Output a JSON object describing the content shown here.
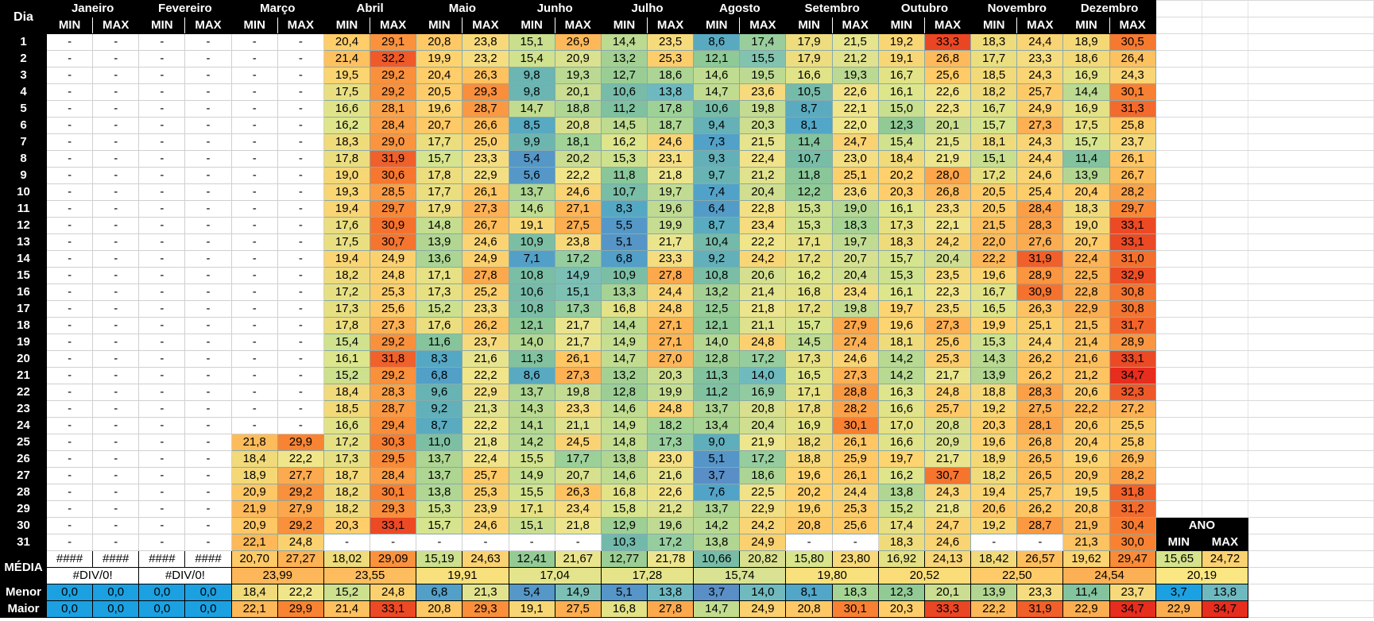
{
  "header": {
    "dia": "Dia",
    "min": "MIN",
    "max": "MAX",
    "ano": "ANO"
  },
  "months": [
    "Janeiro",
    "Fevereiro",
    "Março",
    "Abril",
    "Maio",
    "Junho",
    "Julho",
    "Agosto",
    "Setembro",
    "Outubro",
    "Novembro",
    "Dezembro"
  ],
  "days": [
    "1",
    "2",
    "3",
    "4",
    "5",
    "6",
    "7",
    "8",
    "9",
    "10",
    "11",
    "12",
    "13",
    "14",
    "15",
    "16",
    "17",
    "18",
    "19",
    "20",
    "21",
    "22",
    "23",
    "24",
    "25",
    "26",
    "27",
    "28",
    "29",
    "30",
    "31"
  ],
  "rows": [
    [
      "-",
      "-",
      "-",
      "-",
      "-",
      "-",
      "20,4",
      "29,1",
      "20,8",
      "23,8",
      "15,1",
      "26,9",
      "14,4",
      "23,5",
      "8,6",
      "17,4",
      "17,9",
      "21,5",
      "19,2",
      "33,3",
      "18,3",
      "24,4",
      "18,9",
      "30,5"
    ],
    [
      "-",
      "-",
      "-",
      "-",
      "-",
      "-",
      "21,4",
      "32,2",
      "19,9",
      "23,2",
      "15,4",
      "20,9",
      "13,2",
      "25,3",
      "12,1",
      "15,5",
      "17,9",
      "21,2",
      "19,1",
      "26,8",
      "17,7",
      "23,3",
      "18,6",
      "26,4"
    ],
    [
      "-",
      "-",
      "-",
      "-",
      "-",
      "-",
      "19,5",
      "29,2",
      "20,4",
      "26,3",
      "9,8",
      "19,3",
      "12,7",
      "18,6",
      "14,6",
      "19,5",
      "16,6",
      "19,3",
      "16,7",
      "25,6",
      "18,5",
      "24,3",
      "16,9",
      "24,3"
    ],
    [
      "-",
      "-",
      "-",
      "-",
      "-",
      "-",
      "17,5",
      "29,2",
      "20,5",
      "29,3",
      "9,8",
      "20,1",
      "10,6",
      "13,8",
      "14,7",
      "23,6",
      "10,5",
      "22,6",
      "16,1",
      "22,6",
      "18,2",
      "25,7",
      "14,4",
      "30,1"
    ],
    [
      "-",
      "-",
      "-",
      "-",
      "-",
      "-",
      "16,6",
      "28,1",
      "19,6",
      "28,7",
      "14,7",
      "18,8",
      "11,2",
      "17,8",
      "10,6",
      "19,8",
      "8,7",
      "22,1",
      "15,0",
      "22,3",
      "16,7",
      "24,9",
      "16,9",
      "31,3"
    ],
    [
      "-",
      "-",
      "-",
      "-",
      "-",
      "-",
      "16,2",
      "28,4",
      "20,7",
      "26,6",
      "8,5",
      "20,8",
      "14,5",
      "18,7",
      "9,4",
      "20,3",
      "8,1",
      "22,0",
      "12,3",
      "20,1",
      "15,7",
      "27,3",
      "17,5",
      "25,8"
    ],
    [
      "-",
      "-",
      "-",
      "-",
      "-",
      "-",
      "18,3",
      "29,0",
      "17,7",
      "25,0",
      "9,9",
      "18,1",
      "16,2",
      "24,6",
      "7,3",
      "21,5",
      "11,4",
      "24,7",
      "15,4",
      "21,5",
      "18,1",
      "24,3",
      "15,7",
      "23,7"
    ],
    [
      "-",
      "-",
      "-",
      "-",
      "-",
      "-",
      "17,8",
      "31,9",
      "15,7",
      "23,3",
      "5,4",
      "20,2",
      "15,3",
      "23,1",
      "9,3",
      "22,4",
      "10,7",
      "23,0",
      "18,4",
      "21,9",
      "15,1",
      "24,4",
      "11,4",
      "26,1"
    ],
    [
      "-",
      "-",
      "-",
      "-",
      "-",
      "-",
      "19,0",
      "30,6",
      "17,8",
      "22,9",
      "5,6",
      "22,2",
      "11,8",
      "21,8",
      "9,7",
      "21,2",
      "11,8",
      "25,1",
      "20,2",
      "28,0",
      "17,2",
      "24,6",
      "13,9",
      "26,7"
    ],
    [
      "-",
      "-",
      "-",
      "-",
      "-",
      "-",
      "19,3",
      "28,5",
      "17,7",
      "26,1",
      "13,7",
      "24,6",
      "10,7",
      "19,7",
      "7,4",
      "20,4",
      "12,2",
      "23,6",
      "20,3",
      "26,8",
      "20,5",
      "25,4",
      "20,4",
      "28,2"
    ],
    [
      "-",
      "-",
      "-",
      "-",
      "-",
      "-",
      "19,4",
      "29,7",
      "17,9",
      "27,3",
      "14,6",
      "27,1",
      "8,3",
      "19,6",
      "6,4",
      "22,8",
      "15,3",
      "19,0",
      "16,1",
      "23,3",
      "20,5",
      "28,4",
      "18,3",
      "29,7"
    ],
    [
      "-",
      "-",
      "-",
      "-",
      "-",
      "-",
      "17,6",
      "30,9",
      "14,8",
      "26,7",
      "19,1",
      "27,5",
      "5,5",
      "19,9",
      "8,7",
      "23,4",
      "15,3",
      "18,3",
      "17,3",
      "22,1",
      "21,5",
      "28,3",
      "19,0",
      "33,1"
    ],
    [
      "-",
      "-",
      "-",
      "-",
      "-",
      "-",
      "17,5",
      "30,7",
      "13,9",
      "24,6",
      "10,9",
      "23,8",
      "5,1",
      "21,7",
      "10,4",
      "22,2",
      "17,1",
      "19,7",
      "18,3",
      "24,2",
      "22,0",
      "27,6",
      "20,7",
      "33,1"
    ],
    [
      "-",
      "-",
      "-",
      "-",
      "-",
      "-",
      "19,4",
      "24,9",
      "13,6",
      "24,9",
      "7,1",
      "17,2",
      "6,8",
      "23,3",
      "9,2",
      "24,2",
      "17,2",
      "20,7",
      "15,7",
      "20,4",
      "22,2",
      "31,9",
      "22,4",
      "31,0"
    ],
    [
      "-",
      "-",
      "-",
      "-",
      "-",
      "-",
      "18,2",
      "24,8",
      "17,1",
      "27,8",
      "10,8",
      "14,9",
      "10,9",
      "27,8",
      "10,8",
      "20,6",
      "16,2",
      "20,4",
      "15,3",
      "23,5",
      "19,6",
      "28,9",
      "22,5",
      "32,9"
    ],
    [
      "-",
      "-",
      "-",
      "-",
      "-",
      "-",
      "17,2",
      "25,3",
      "17,3",
      "25,2",
      "10,6",
      "15,1",
      "13,3",
      "24,4",
      "13,2",
      "21,4",
      "16,8",
      "23,4",
      "16,1",
      "22,3",
      "16,7",
      "30,9",
      "22,8",
      "30,8"
    ],
    [
      "-",
      "-",
      "-",
      "-",
      "-",
      "-",
      "17,3",
      "25,6",
      "15,2",
      "23,3",
      "10,8",
      "17,3",
      "16,8",
      "24,8",
      "12,5",
      "21,8",
      "17,2",
      "19,8",
      "19,7",
      "23,5",
      "16,5",
      "26,3",
      "22,9",
      "30,8"
    ],
    [
      "-",
      "-",
      "-",
      "-",
      "-",
      "-",
      "17,8",
      "27,3",
      "17,6",
      "26,2",
      "12,1",
      "21,7",
      "14,4",
      "27,1",
      "12,1",
      "21,1",
      "15,7",
      "27,9",
      "19,6",
      "27,3",
      "19,9",
      "25,1",
      "21,5",
      "31,7"
    ],
    [
      "-",
      "-",
      "-",
      "-",
      "-",
      "-",
      "15,4",
      "29,2",
      "11,6",
      "23,7",
      "14,0",
      "21,7",
      "14,9",
      "27,1",
      "14,0",
      "24,8",
      "14,5",
      "27,4",
      "18,1",
      "25,6",
      "15,3",
      "24,4",
      "21,4",
      "28,9"
    ],
    [
      "-",
      "-",
      "-",
      "-",
      "-",
      "-",
      "16,1",
      "31,8",
      "8,3",
      "21,6",
      "11,3",
      "26,1",
      "14,7",
      "27,0",
      "12,8",
      "17,2",
      "17,3",
      "24,6",
      "14,2",
      "25,3",
      "14,3",
      "26,2",
      "21,6",
      "33,1"
    ],
    [
      "-",
      "-",
      "-",
      "-",
      "-",
      "-",
      "15,2",
      "29,2",
      "6,8",
      "22,2",
      "8,6",
      "27,3",
      "13,2",
      "20,3",
      "11,3",
      "14,0",
      "16,5",
      "27,3",
      "14,2",
      "21,7",
      "13,9",
      "26,2",
      "21,2",
      "34,7"
    ],
    [
      "-",
      "-",
      "-",
      "-",
      "-",
      "-",
      "18,4",
      "28,3",
      "9,6",
      "22,9",
      "13,7",
      "19,8",
      "12,8",
      "19,9",
      "11,2",
      "16,9",
      "17,1",
      "28,8",
      "16,3",
      "24,8",
      "18,8",
      "28,3",
      "20,6",
      "32,3"
    ],
    [
      "-",
      "-",
      "-",
      "-",
      "-",
      "-",
      "18,5",
      "28,7",
      "9,2",
      "21,3",
      "14,3",
      "23,3",
      "14,6",
      "24,8",
      "13,7",
      "20,8",
      "17,8",
      "28,2",
      "16,6",
      "25,7",
      "19,2",
      "27,5",
      "22,2",
      "27,2"
    ],
    [
      "-",
      "-",
      "-",
      "-",
      "-",
      "-",
      "16,6",
      "29,4",
      "8,7",
      "22,2",
      "14,1",
      "21,1",
      "14,9",
      "18,2",
      "13,4",
      "20,4",
      "16,9",
      "30,1",
      "17,0",
      "20,8",
      "20,3",
      "28,1",
      "20,6",
      "25,5"
    ],
    [
      "-",
      "-",
      "-",
      "-",
      "21,8",
      "29,9",
      "17,2",
      "30,3",
      "11,0",
      "21,8",
      "14,2",
      "24,5",
      "14,8",
      "17,3",
      "9,0",
      "21,9",
      "18,2",
      "26,1",
      "16,6",
      "20,9",
      "19,6",
      "26,8",
      "20,4",
      "25,8"
    ],
    [
      "-",
      "-",
      "-",
      "-",
      "18,4",
      "22,2",
      "17,3",
      "29,5",
      "13,7",
      "22,4",
      "15,5",
      "17,7",
      "13,8",
      "23,0",
      "5,1",
      "17,2",
      "18,8",
      "25,9",
      "19,7",
      "21,7",
      "18,9",
      "26,5",
      "19,6",
      "26,9"
    ],
    [
      "-",
      "-",
      "-",
      "-",
      "18,9",
      "27,7",
      "18,7",
      "28,4",
      "13,7",
      "25,7",
      "14,9",
      "20,7",
      "14,6",
      "21,6",
      "3,7",
      "18,6",
      "19,6",
      "26,1",
      "16,2",
      "30,7",
      "18,2",
      "26,5",
      "20,9",
      "28,2"
    ],
    [
      "-",
      "-",
      "-",
      "-",
      "20,9",
      "29,2",
      "18,2",
      "30,1",
      "13,8",
      "25,3",
      "15,5",
      "26,3",
      "16,8",
      "22,6",
      "7,6",
      "22,5",
      "20,2",
      "24,4",
      "13,8",
      "24,3",
      "19,4",
      "25,7",
      "19,5",
      "31,8"
    ],
    [
      "-",
      "-",
      "-",
      "-",
      "21,9",
      "27,9",
      "18,2",
      "29,3",
      "15,3",
      "23,9",
      "17,1",
      "23,4",
      "15,8",
      "21,2",
      "13,7",
      "22,9",
      "19,6",
      "25,3",
      "15,2",
      "21,8",
      "20,6",
      "26,2",
      "20,8",
      "31,2"
    ],
    [
      "-",
      "-",
      "-",
      "-",
      "20,9",
      "29,2",
      "20,3",
      "33,1",
      "15,7",
      "24,6",
      "15,1",
      "21,8",
      "12,9",
      "19,6",
      "14,2",
      "24,2",
      "20,8",
      "25,6",
      "17,4",
      "24,7",
      "19,2",
      "28,7",
      "21,9",
      "30,4"
    ],
    [
      "-",
      "-",
      "-",
      "-",
      "22,1",
      "24,8",
      "-",
      "-",
      "-",
      "-",
      "-",
      "-",
      "10,3",
      "17,2",
      "13,8",
      "24,9",
      "-",
      "-",
      "18,3",
      "24,6",
      "-",
      "-",
      "21,3",
      "30,0"
    ]
  ],
  "media": {
    "label": "MÉDIA",
    "values": [
      "####",
      "####",
      "####",
      "####",
      "20,70",
      "27,27",
      "18,02",
      "29,09",
      "15,19",
      "24,63",
      "12,41",
      "21,67",
      "12,77",
      "21,78",
      "10,66",
      "20,82",
      "15,80",
      "23,80",
      "16,92",
      "24,13",
      "18,42",
      "26,57",
      "19,62",
      "29,47"
    ],
    "ano": [
      "15,65",
      "24,72"
    ]
  },
  "media2": {
    "values": [
      "#DIV/0!",
      "#DIV/0!",
      "23,99",
      "23,55",
      "19,91",
      "17,04",
      "17,28",
      "15,74",
      "19,80",
      "20,52",
      "22,50",
      "24,54"
    ],
    "ano": "20,19"
  },
  "menor": {
    "label": "Menor",
    "values": [
      "0,0",
      "0,0",
      "0,0",
      "0,0",
      "18,4",
      "22,2",
      "15,2",
      "24,8",
      "6,8",
      "21,3",
      "5,4",
      "14,9",
      "5,1",
      "13,8",
      "3,7",
      "14,0",
      "8,1",
      "18,3",
      "12,3",
      "20,1",
      "13,9",
      "23,3",
      "11,4",
      "23,7"
    ],
    "ano": [
      "3,7",
      "13,8"
    ]
  },
  "maior": {
    "label": "Maior",
    "values": [
      "0,0",
      "0,0",
      "0,0",
      "0,0",
      "22,1",
      "29,9",
      "21,4",
      "33,1",
      "20,8",
      "29,3",
      "19,1",
      "27,5",
      "16,8",
      "27,8",
      "14,7",
      "24,9",
      "20,8",
      "30,1",
      "20,3",
      "33,3",
      "22,2",
      "31,9",
      "22,9",
      "34,7"
    ],
    "ano": [
      "22,9",
      "34,7"
    ]
  },
  "colors": {
    "header": "#000000",
    "zero_cell": "#1ba1e2",
    "error_cell": "#ffffff"
  }
}
